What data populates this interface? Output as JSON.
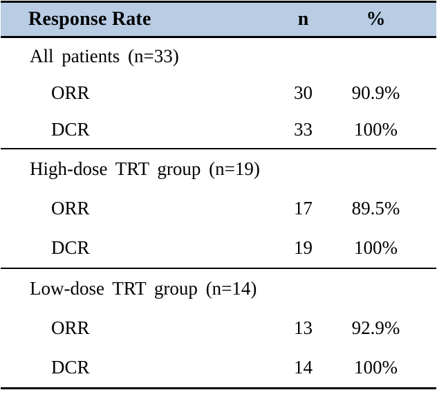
{
  "colors": {
    "header_bg": "#B8CCE4",
    "rule": "#000000",
    "text": "#000000"
  },
  "table": {
    "header": {
      "label": "Response Rate",
      "n": "n",
      "pct": "%"
    },
    "sections": [
      {
        "title": "All patients (n=33)",
        "rows": [
          {
            "label": "ORR",
            "n": "30",
            "pct": "90.9%"
          },
          {
            "label": "DCR",
            "n": "33",
            "pct": "100%"
          }
        ]
      },
      {
        "title": "High-dose TRT group (n=19)",
        "rows": [
          {
            "label": "ORR",
            "n": "17",
            "pct": "89.5%"
          },
          {
            "label": "DCR",
            "n": "19",
            "pct": "100%"
          }
        ]
      },
      {
        "title": "Low-dose TRT group (n=14)",
        "rows": [
          {
            "label": "ORR",
            "n": "13",
            "pct": "92.9%"
          },
          {
            "label": "DCR",
            "n": "14",
            "pct": "100%"
          }
        ]
      }
    ]
  }
}
